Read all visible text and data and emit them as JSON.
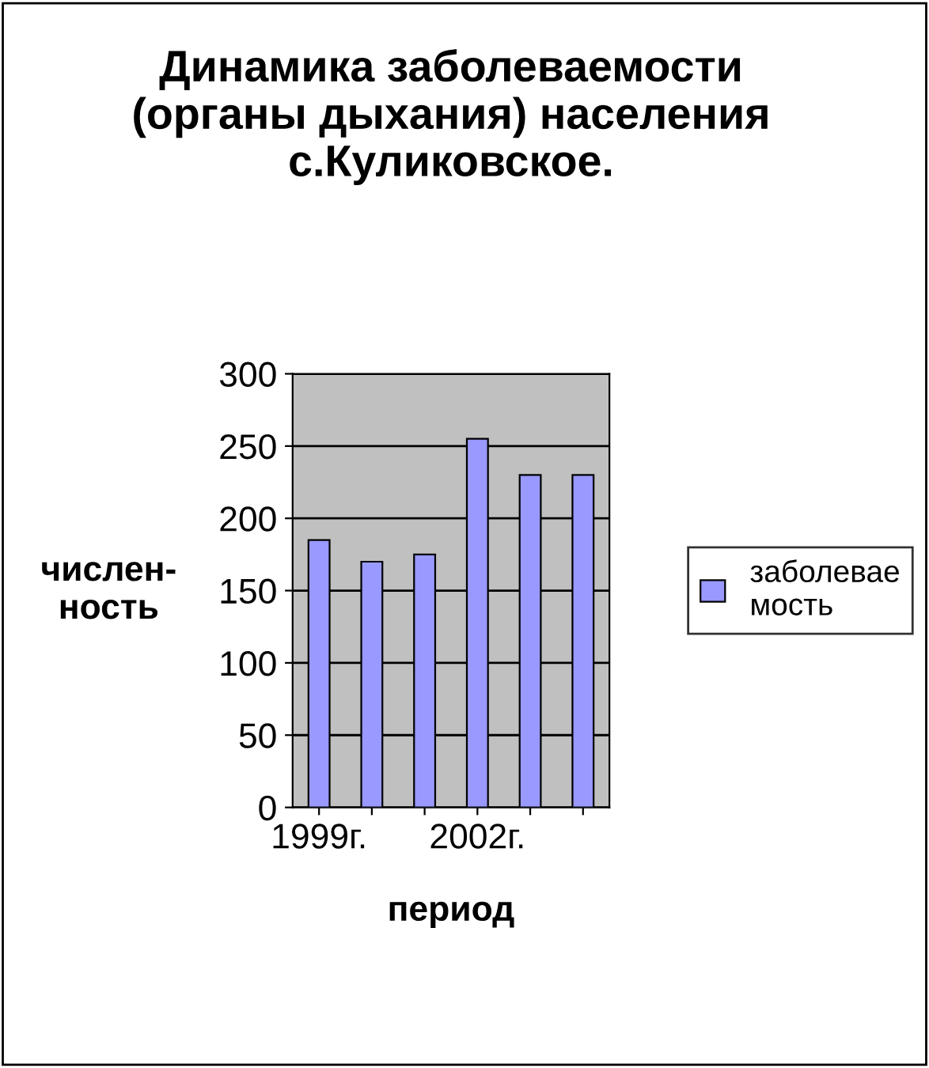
{
  "chart_data": {
    "type": "bar",
    "title": "Динамика заболеваемости\n(органы дыхания) населения\nс.Куликовское.",
    "xlabel": "период",
    "ylabel": "числен-\nность",
    "categories": [
      "1999г.",
      null,
      null,
      "2002г.",
      null,
      null
    ],
    "series": [
      {
        "name": "заболевае\nмость",
        "color": "#9999ff",
        "values": [
          185,
          170,
          175,
          255,
          230,
          230
        ]
      }
    ],
    "ylim": [
      0,
      300
    ],
    "yticks": [
      0,
      50,
      100,
      150,
      200,
      250,
      300
    ],
    "grid": "y",
    "legend": "right"
  }
}
